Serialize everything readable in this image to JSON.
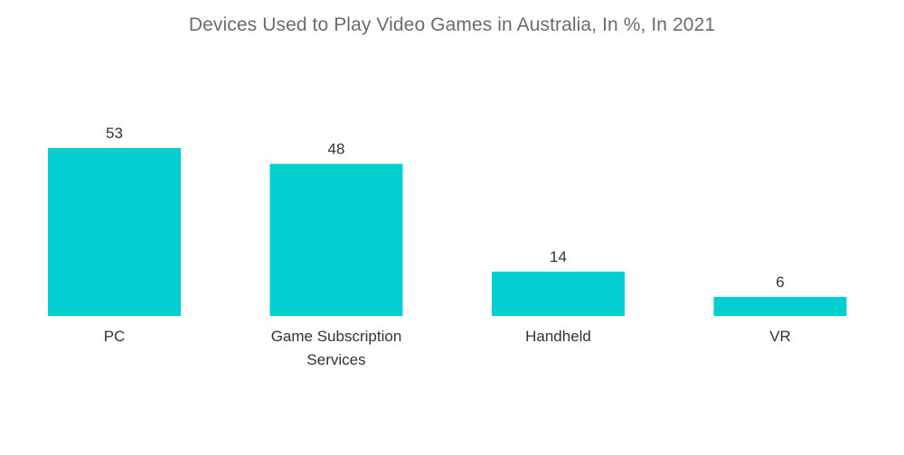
{
  "chart_data": {
    "type": "bar",
    "title": "Devices Used to Play Video Games in Australia, In %, In 2021",
    "categories": [
      "PC",
      "Game Subscription Services",
      "Handheld",
      "VR"
    ],
    "category_lines": [
      [
        "PC"
      ],
      [
        "Game Subscription",
        "Services"
      ],
      [
        "Handheld"
      ],
      [
        "VR"
      ]
    ],
    "values": [
      53,
      48,
      14,
      6
    ],
    "value_labels": [
      "53",
      "48",
      "14",
      "6"
    ],
    "xlabel": "",
    "ylabel": "",
    "ylim": [
      0,
      53
    ],
    "grid": false,
    "legend": "none",
    "bar_color": "#00CED1"
  }
}
